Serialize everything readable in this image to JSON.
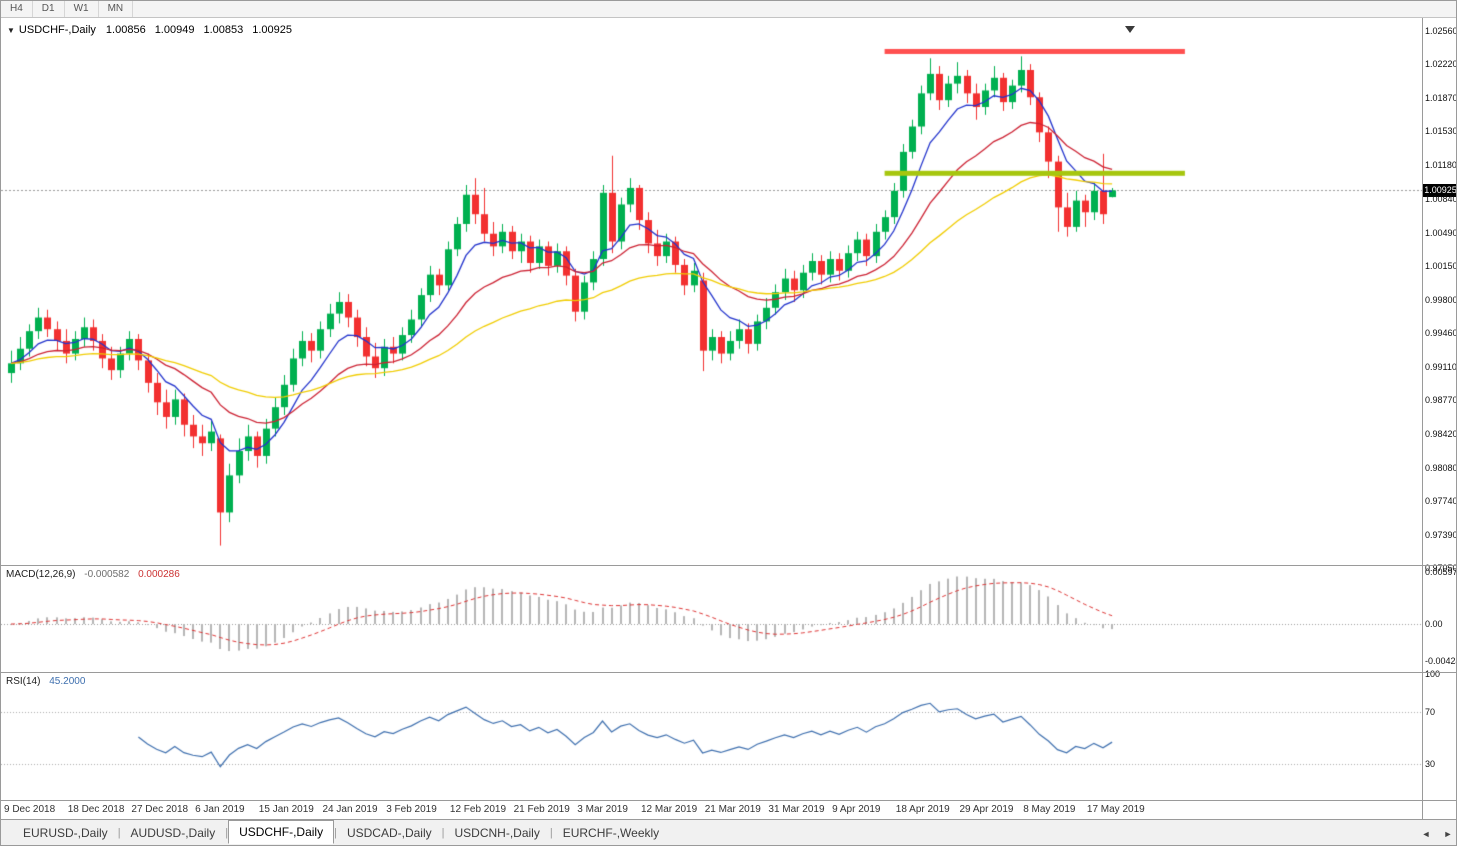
{
  "toolbar": {
    "timeframes": [
      "H4",
      "D1",
      "W1",
      "MN"
    ]
  },
  "chart_header": {
    "collapse_icon": "▼",
    "symbol": "USDCHF-,Daily",
    "open": "1.00856",
    "high": "1.00949",
    "low": "1.00853",
    "close": "1.00925"
  },
  "colors": {
    "bull": "#00b050",
    "bear": "#f23030",
    "current_price_line": "#9a9a9a",
    "price_tag_bg": "#000000",
    "grid_separator": "#9a9a9a"
  },
  "chart_data": {
    "type": "candlestick",
    "symbol": "USDCHF-",
    "timeframe": "Daily",
    "y_axis": {
      "max": 1.0256,
      "min": 0.9705,
      "tick_labels": [
        "1.02560",
        "1.02220",
        "1.01870",
        "1.01530",
        "1.01180",
        "1.00840",
        "1.00490",
        "1.00150",
        "0.99800",
        "0.99460",
        "0.99110",
        "0.98770",
        "0.98420",
        "0.98080",
        "0.97740",
        "0.97390",
        "0.97050"
      ]
    },
    "x_axis": {
      "tick_labels": [
        "9 Dec 2018",
        "18 Dec 2018",
        "27 Dec 2018",
        "6 Jan 2019",
        "15 Jan 2019",
        "24 Jan 2019",
        "3 Feb 2019",
        "12 Feb 2019",
        "21 Feb 2019",
        "3 Mar 2019",
        "12 Mar 2019",
        "21 Mar 2019",
        "31 Mar 2019",
        "9 Apr 2019",
        "18 Apr 2019",
        "29 Apr 2019",
        "8 May 2019",
        "17 May 2019"
      ]
    },
    "candles": [
      [
        0.9905,
        0.9928,
        0.9895,
        0.9915
      ],
      [
        0.9915,
        0.9942,
        0.9908,
        0.993
      ],
      [
        0.993,
        0.9955,
        0.9922,
        0.9948
      ],
      [
        0.9948,
        0.9972,
        0.994,
        0.9962
      ],
      [
        0.9962,
        0.997,
        0.9942,
        0.995
      ],
      [
        0.995,
        0.9958,
        0.9928,
        0.9938
      ],
      [
        0.9938,
        0.995,
        0.9915,
        0.9925
      ],
      [
        0.9925,
        0.9948,
        0.9918,
        0.994
      ],
      [
        0.994,
        0.9962,
        0.9932,
        0.9952
      ],
      [
        0.9952,
        0.996,
        0.9928,
        0.9938
      ],
      [
        0.9938,
        0.9945,
        0.991,
        0.992
      ],
      [
        0.992,
        0.9932,
        0.9898,
        0.9908
      ],
      [
        0.9908,
        0.9932,
        0.99,
        0.9925
      ],
      [
        0.9925,
        0.9948,
        0.9918,
        0.994
      ],
      [
        0.994,
        0.9945,
        0.9908,
        0.9918
      ],
      [
        0.9918,
        0.9925,
        0.9885,
        0.9895
      ],
      [
        0.9895,
        0.9905,
        0.9862,
        0.9875
      ],
      [
        0.9875,
        0.9888,
        0.9848,
        0.986
      ],
      [
        0.986,
        0.9888,
        0.9852,
        0.9878
      ],
      [
        0.9878,
        0.9884,
        0.984,
        0.9852
      ],
      [
        0.9852,
        0.9862,
        0.9828,
        0.984
      ],
      [
        0.984,
        0.9852,
        0.982,
        0.9833
      ],
      [
        0.9833,
        0.9856,
        0.9825,
        0.9845
      ],
      [
        0.9838,
        0.9842,
        0.9728,
        0.9762
      ],
      [
        0.9762,
        0.9812,
        0.9752,
        0.98
      ],
      [
        0.98,
        0.9838,
        0.9792,
        0.9825
      ],
      [
        0.9825,
        0.9852,
        0.9815,
        0.984
      ],
      [
        0.984,
        0.9845,
        0.9808,
        0.982
      ],
      [
        0.982,
        0.9858,
        0.9812,
        0.9848
      ],
      [
        0.9848,
        0.988,
        0.984,
        0.987
      ],
      [
        0.987,
        0.9903,
        0.9862,
        0.9893
      ],
      [
        0.9893,
        0.993,
        0.9886,
        0.992
      ],
      [
        0.992,
        0.9948,
        0.9912,
        0.9938
      ],
      [
        0.9938,
        0.9946,
        0.9916,
        0.9928
      ],
      [
        0.9928,
        0.9958,
        0.992,
        0.995
      ],
      [
        0.995,
        0.9976,
        0.9942,
        0.9966
      ],
      [
        0.9966,
        0.9988,
        0.9956,
        0.9978
      ],
      [
        0.9978,
        0.9986,
        0.9952,
        0.9962
      ],
      [
        0.9962,
        0.997,
        0.9932,
        0.9942
      ],
      [
        0.9942,
        0.9952,
        0.9912,
        0.9922
      ],
      [
        0.9922,
        0.9936,
        0.99,
        0.991
      ],
      [
        0.991,
        0.994,
        0.9902,
        0.9932
      ],
      [
        0.9932,
        0.9942,
        0.9915,
        0.9925
      ],
      [
        0.9925,
        0.9952,
        0.9918,
        0.9944
      ],
      [
        0.9944,
        0.997,
        0.9936,
        0.996
      ],
      [
        0.996,
        0.9992,
        0.9952,
        0.9985
      ],
      [
        0.9985,
        1.0015,
        0.9978,
        1.0006
      ],
      [
        1.0006,
        1.0012,
        0.9985,
        0.9995
      ],
      [
        0.9995,
        1.004,
        0.999,
        1.0032
      ],
      [
        1.0032,
        1.0065,
        1.0025,
        1.0058
      ],
      [
        1.0058,
        1.0098,
        1.005,
        1.0088
      ],
      [
        1.0088,
        1.0105,
        1.0058,
        1.0068
      ],
      [
        1.0068,
        1.0095,
        1.004,
        1.0048
      ],
      [
        1.0048,
        1.006,
        1.0025,
        1.0035
      ],
      [
        1.0035,
        1.0058,
        1.0028,
        1.005
      ],
      [
        1.005,
        1.0056,
        1.0022,
        1.003
      ],
      [
        1.003,
        1.0048,
        1.0018,
        1.004
      ],
      [
        1.004,
        1.0046,
        1.0008,
        1.0018
      ],
      [
        1.0018,
        1.0042,
        1.0012,
        1.0035
      ],
      [
        1.0035,
        1.004,
        1.0005,
        1.0015
      ],
      [
        1.0015,
        1.0038,
        1.0008,
        1.003
      ],
      [
        1.003,
        1.0035,
        0.9995,
        1.0005
      ],
      [
        1.0005,
        1.0012,
        0.9958,
        0.9968
      ],
      [
        0.9968,
        1.0005,
        0.996,
        0.9998
      ],
      [
        0.9998,
        1.003,
        0.999,
        1.0022
      ],
      [
        1.0022,
        1.0098,
        1.0015,
        1.009
      ],
      [
        1.009,
        1.0128,
        1.0028,
        1.004
      ],
      [
        1.004,
        1.0085,
        1.0032,
        1.0078
      ],
      [
        1.0078,
        1.0105,
        1.007,
        1.0095
      ],
      [
        1.0095,
        1.0098,
        1.0052,
        1.0062
      ],
      [
        1.0062,
        1.007,
        1.0028,
        1.0038
      ],
      [
        1.0038,
        1.0052,
        1.0015,
        1.0025
      ],
      [
        1.0025,
        1.0048,
        1.0018,
        1.004
      ],
      [
        1.004,
        1.0045,
        1.0008,
        1.0016
      ],
      [
        1.0016,
        1.0022,
        0.9985,
        0.9995
      ],
      [
        0.9995,
        1.0018,
        0.9988,
        1.001
      ],
      [
        1.0,
        1.0008,
        0.9907,
        0.9928
      ],
      [
        0.9928,
        0.995,
        0.9918,
        0.9942
      ],
      [
        0.9942,
        0.9948,
        0.9915,
        0.9925
      ],
      [
        0.9925,
        0.9948,
        0.9918,
        0.9938
      ],
      [
        0.9938,
        0.996,
        0.993,
        0.995
      ],
      [
        0.995,
        0.9956,
        0.9925,
        0.9935
      ],
      [
        0.9935,
        0.9965,
        0.9928,
        0.9958
      ],
      [
        0.9958,
        0.9982,
        0.995,
        0.9972
      ],
      [
        0.9972,
        0.9996,
        0.9965,
        0.9988
      ],
      [
        0.9988,
        1.0012,
        0.998,
        1.0002
      ],
      [
        1.0002,
        1.001,
        0.9978,
        0.999
      ],
      [
        0.999,
        1.0016,
        0.9982,
        1.0008
      ],
      [
        1.0008,
        1.0028,
        1.0,
        1.002
      ],
      [
        1.002,
        1.0026,
        0.9996,
        1.0006
      ],
      [
        1.0006,
        1.003,
        0.9998,
        1.0022
      ],
      [
        1.0022,
        1.0028,
        1.0,
        1.001
      ],
      [
        1.001,
        1.0036,
        1.0003,
        1.0028
      ],
      [
        1.0028,
        1.005,
        1.002,
        1.0042
      ],
      [
        1.0042,
        1.0048,
        1.0015,
        1.0025
      ],
      [
        1.0025,
        1.0058,
        1.0018,
        1.005
      ],
      [
        1.005,
        1.0072,
        1.0042,
        1.0065
      ],
      [
        1.0065,
        1.01,
        1.0058,
        1.0092
      ],
      [
        1.0092,
        1.014,
        1.0085,
        1.0132
      ],
      [
        1.0132,
        1.0165,
        1.0125,
        1.0158
      ],
      [
        1.0158,
        1.02,
        1.015,
        1.0192
      ],
      [
        1.0192,
        1.0228,
        1.0185,
        1.0212
      ],
      [
        1.0212,
        1.022,
        1.0175,
        1.0185
      ],
      [
        1.0185,
        1.021,
        1.0178,
        1.0202
      ],
      [
        1.0202,
        1.0224,
        1.0192,
        1.021
      ],
      [
        1.021,
        1.0216,
        1.0182,
        1.0192
      ],
      [
        1.0192,
        1.0202,
        1.0165,
        1.0178
      ],
      [
        1.0178,
        1.0202,
        1.017,
        1.0195
      ],
      [
        1.0195,
        1.022,
        1.0188,
        1.0208
      ],
      [
        1.0208,
        1.0213,
        1.0174,
        1.0183
      ],
      [
        1.0183,
        1.0206,
        1.0176,
        1.02
      ],
      [
        1.02,
        1.023,
        1.0193,
        1.0216
      ],
      [
        1.0216,
        1.0222,
        1.018,
        1.0188
      ],
      [
        1.0188,
        1.0193,
        1.0142,
        1.0152
      ],
      [
        1.0152,
        1.0158,
        1.0105,
        1.0122
      ],
      [
        1.0122,
        1.0128,
        1.005,
        1.0075
      ],
      [
        1.0075,
        1.009,
        1.0045,
        1.0055
      ],
      [
        1.0055,
        1.0092,
        1.005,
        1.0082
      ],
      [
        1.0082,
        1.0088,
        1.0055,
        1.007
      ],
      [
        1.007,
        1.01,
        1.0062,
        1.0092
      ],
      [
        1.0092,
        1.013,
        1.0058,
        1.0068
      ],
      [
        1.00856,
        1.00949,
        1.00853,
        1.00925
      ]
    ],
    "overlays": {
      "moving_averages": [
        {
          "name": "ma-fast-blue",
          "period": 7,
          "color": "#2233cc"
        },
        {
          "name": "ma-medium-red",
          "period": 18,
          "color": "#cc2233"
        },
        {
          "name": "ma-slow-yellow",
          "period": 40,
          "color": "#f0cc00"
        }
      ],
      "horizontal_lines": [
        {
          "name": "resistance-line",
          "price": 1.0235,
          "color": "#ff5050",
          "from_index": 96,
          "to_index": 129,
          "thickness": 5
        },
        {
          "name": "support-line",
          "price": 1.011,
          "color": "#a6c60e",
          "from_index": 96,
          "to_index": 129,
          "thickness": 5
        }
      ],
      "current_price": 1.00925,
      "current_price_label": "1.00925"
    },
    "indicators": {
      "macd": {
        "label": "MACD(12,26,9)",
        "fast": 12,
        "slow": 26,
        "signal_period": 9,
        "main_value": -0.000582,
        "signal_value": 0.000286,
        "display_main": "-0.000582",
        "display_signal": "0.000286",
        "axis_max": 0.00597,
        "axis_min": -0.00424,
        "axis_labels": [
          "0.00597",
          "0.00",
          "-0.00424"
        ],
        "histogram_color": "#b6b6b6",
        "signal_color": "#dd3333"
      },
      "rsi": {
        "label": "RSI(14)",
        "period": 14,
        "value": 45.2,
        "display_value": "45.2000",
        "levels": [
          70,
          30
        ],
        "axis_labels": [
          "100",
          "70",
          "30"
        ],
        "line_color": "#3e6fae"
      }
    }
  },
  "tabs": {
    "items": [
      {
        "label": "EURUSD-,Daily",
        "active": false
      },
      {
        "label": "AUDUSD-,Daily",
        "active": false
      },
      {
        "label": "USDCHF-,Daily",
        "active": true
      },
      {
        "label": "USDCAD-,Daily",
        "active": false
      },
      {
        "label": "USDCNH-,Daily",
        "active": false
      },
      {
        "label": "EURCHF-,Weekly",
        "active": false
      }
    ],
    "scroll_left": "◄",
    "scroll_right": "►"
  }
}
